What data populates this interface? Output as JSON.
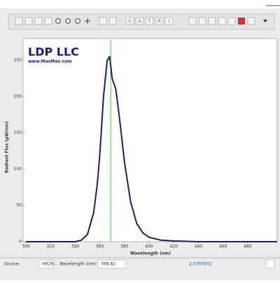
{
  "toolbar": {
    "mode_buttons": [
      "S",
      "A",
      "T",
      "R",
      "I"
    ]
  },
  "chart_data": {
    "type": "line",
    "annotations": [
      "LDP LLC",
      "www.MaxMax.com"
    ],
    "x_label": "Wavelength (nm)",
    "y_label": "Radiant Flux (µW/nm)",
    "x": [
      300,
      340,
      345,
      350,
      355,
      358,
      360,
      363,
      366,
      368,
      370,
      373,
      376,
      380,
      385,
      390,
      395,
      400,
      410,
      420,
      440,
      470,
      504
    ],
    "values": [
      0,
      0,
      2,
      10,
      40,
      80,
      120,
      200,
      250,
      255,
      225,
      210,
      170,
      110,
      55,
      25,
      12,
      6,
      2,
      1,
      0,
      0,
      0
    ],
    "color": "#1b1f6b",
    "cursor": 368.82,
    "cursor_color": "#44cc44",
    "xlim": [
      300,
      504
    ],
    "ylim": [
      0,
      278
    ],
    "xticks": [
      300,
      320,
      340,
      360,
      380,
      400,
      420,
      440,
      460,
      480
    ],
    "yticks": [
      0,
      50,
      100,
      150,
      200,
      250
    ]
  },
  "status_bar": {
    "source_label": "Source:",
    "source_value": "HR28...",
    "wavelength_label": "Wavelength (nm):",
    "flux_value": "2.5397E02"
  }
}
